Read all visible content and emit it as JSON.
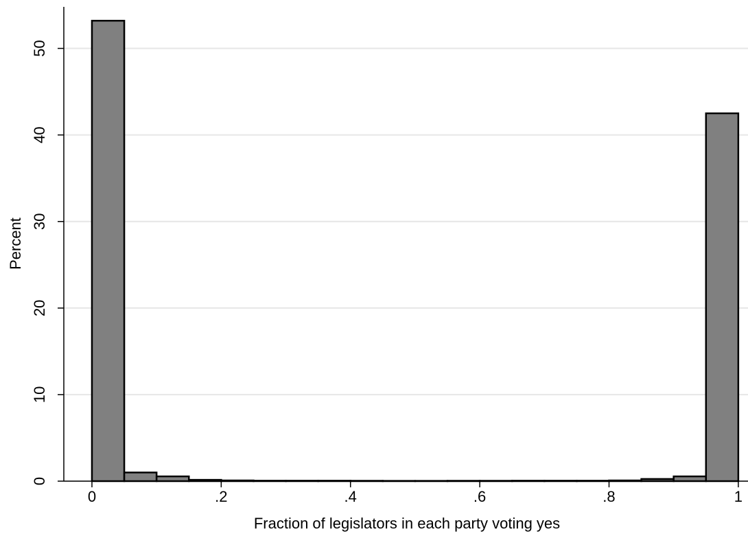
{
  "chart_data": {
    "type": "histogram",
    "xlabel": "Fraction of legislators in each party voting yes",
    "ylabel": "Percent",
    "bins": [
      0,
      0.05,
      0.1,
      0.15,
      0.2,
      0.25,
      0.3,
      0.35,
      0.4,
      0.45,
      0.5,
      0.55,
      0.6,
      0.65,
      0.7,
      0.75,
      0.8,
      0.85,
      0.9,
      0.95,
      1
    ],
    "values": [
      53.2,
      1.0,
      0.55,
      0.15,
      0.08,
      0.05,
      0.05,
      0.05,
      0.04,
      0.03,
      0.03,
      0.04,
      0.04,
      0.05,
      0.05,
      0.05,
      0.08,
      0.25,
      0.55,
      42.5
    ],
    "color": "#808080",
    "xlim": [
      -0.0435,
      1.015
    ],
    "ylim": [
      0,
      54.8
    ],
    "xticks": [
      0,
      {
        "value": 0.2,
        "label": ".2"
      },
      {
        "value": 0.4,
        "label": ".4"
      },
      {
        "value": 0.6,
        "label": ".6"
      },
      {
        "value": 0.8,
        "label": ".8"
      },
      1
    ],
    "yticks": [
      0,
      10,
      20,
      30,
      40,
      50
    ],
    "grid": true
  }
}
